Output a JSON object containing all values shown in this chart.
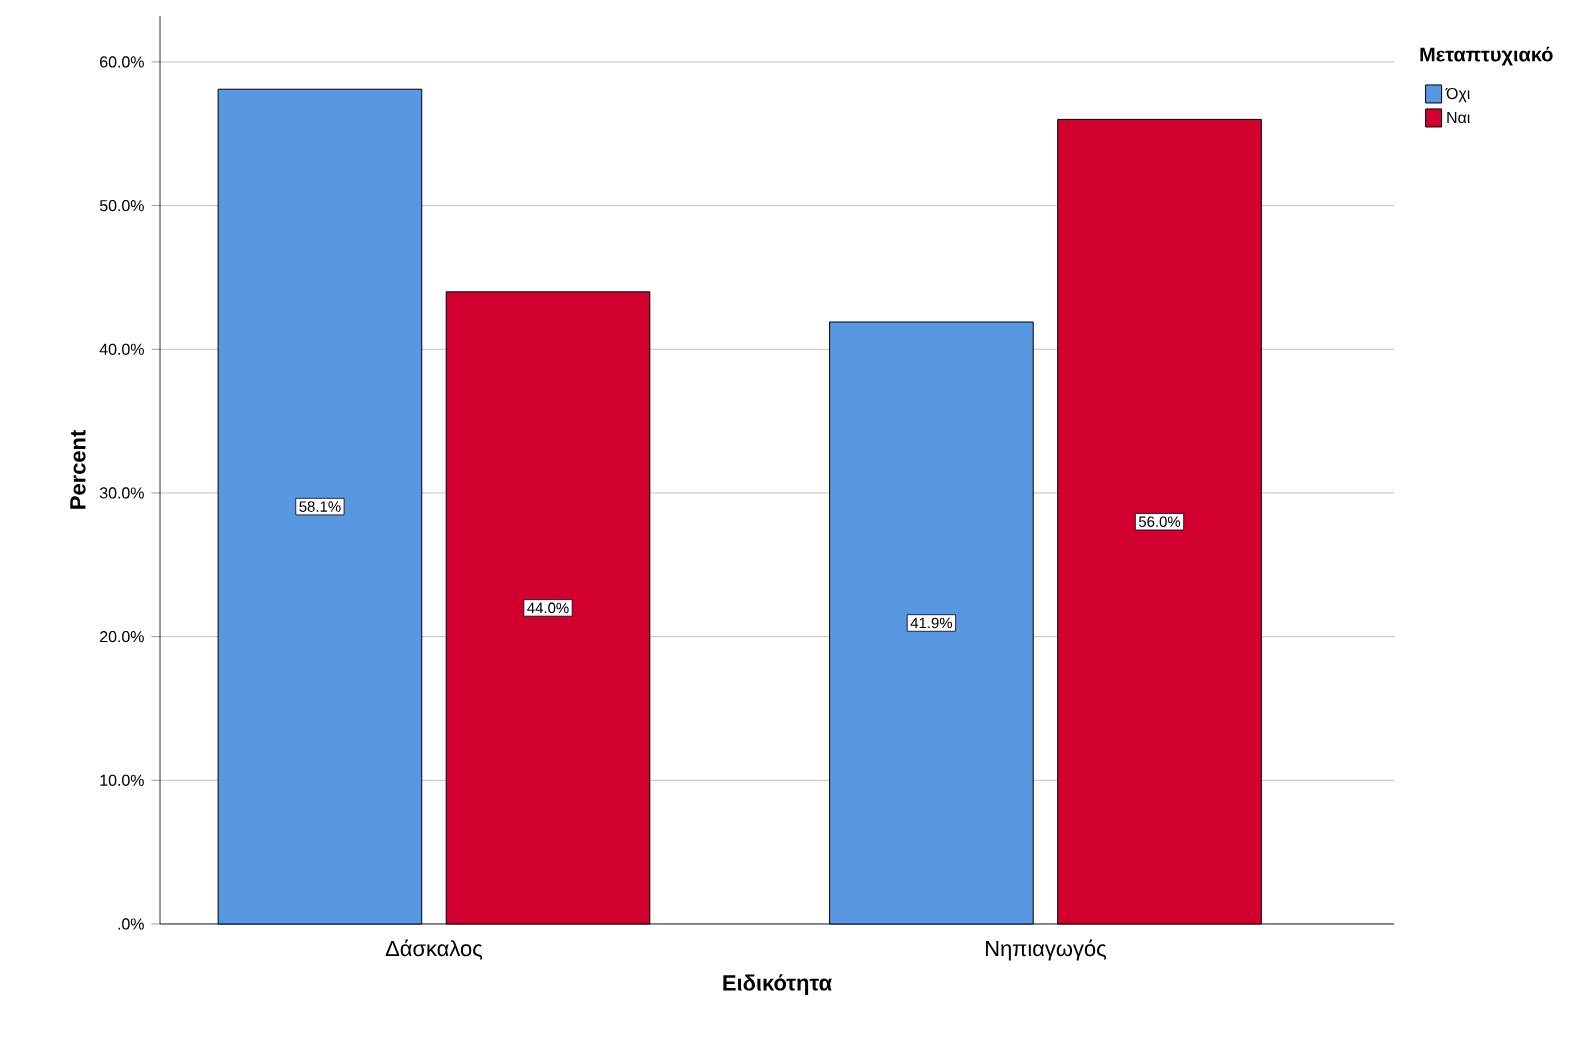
{
  "chart_data": {
    "type": "bar",
    "xlabel": "Ειδικότητα",
    "ylabel": "Percent",
    "legend_title": "Μεταπτυχιακό",
    "categories": [
      "Δάσκαλος",
      "Νηπιαγωγός"
    ],
    "series": [
      {
        "name": "Όχι",
        "color": "#5898e2",
        "values": [
          58.1,
          41.9
        ],
        "value_labels": [
          "58.1%",
          "41.9%"
        ]
      },
      {
        "name": "Ναι",
        "color": "#d2002e",
        "values": [
          44.0,
          56.0
        ],
        "value_labels": [
          "44.0%",
          "56.0%"
        ]
      }
    ],
    "ylim": [
      0,
      63.2
    ],
    "yticks": [
      {
        "value": 0,
        "label": ".0%"
      },
      {
        "value": 10,
        "label": "10.0%"
      },
      {
        "value": 20,
        "label": "20.0%"
      },
      {
        "value": 30,
        "label": "30.0%"
      },
      {
        "value": 40,
        "label": "40.0%"
      },
      {
        "value": 50,
        "label": "50.0%"
      },
      {
        "value": 60,
        "label": "60.0%"
      }
    ],
    "grid": "y",
    "legend": "top right"
  }
}
